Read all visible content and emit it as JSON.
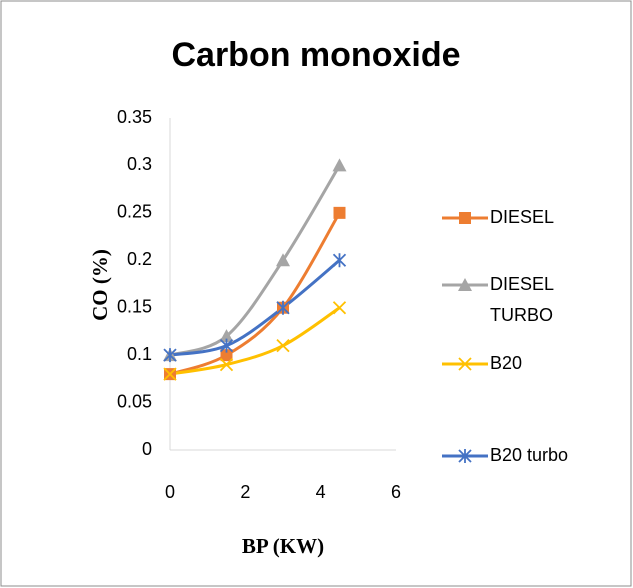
{
  "chart_data": {
    "type": "line",
    "title": "Carbon monoxide",
    "x_label": "BP (KW)",
    "y_label": "CO (%)",
    "x": [
      0,
      1.5,
      3,
      4.5
    ],
    "series": [
      {
        "name": "DIESEL",
        "color": "#ED7D31",
        "marker": "square",
        "values": [
          0.08,
          0.1,
          0.15,
          0.25
        ]
      },
      {
        "name": "DIESEL TURBO",
        "color": "#A5A5A5",
        "marker": "triangle",
        "values": [
          0.1,
          0.12,
          0.2,
          0.3
        ]
      },
      {
        "name": "B20",
        "color": "#FFC000",
        "marker": "x",
        "values": [
          0.08,
          0.09,
          0.11,
          0.15
        ]
      },
      {
        "name": "B20 turbo",
        "color": "#4472C4",
        "marker": "star",
        "values": [
          0.1,
          0.11,
          0.15,
          0.2
        ]
      }
    ],
    "xlim": [
      0,
      6
    ],
    "xticks": [
      0,
      2,
      4,
      6
    ],
    "ylim": [
      0,
      0.35
    ],
    "yticks": [
      0,
      0.05,
      0.1,
      0.15,
      0.2,
      0.25,
      0.3,
      0.35
    ],
    "smooth": true,
    "legend": "right"
  }
}
